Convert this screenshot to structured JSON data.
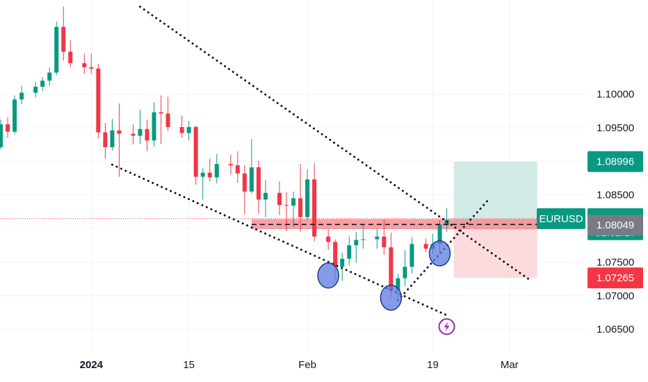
{
  "chart_data": {
    "type": "candlestick",
    "symbol": "EURUSD",
    "y_axis": {
      "range": [
        1.0615,
        1.114
      ],
      "ticks": [
        {
          "value": 1.1,
          "label": "1.10000"
        },
        {
          "value": 1.095,
          "label": "1.09500"
        },
        {
          "value": 1.085,
          "label": "1.08500"
        },
        {
          "value": 1.075,
          "label": "1.07500"
        },
        {
          "value": 1.07,
          "label": "1.07000"
        },
        {
          "value": 1.065,
          "label": "1.06500"
        }
      ]
    },
    "x_axis": {
      "range": [
        "2023-12-18",
        "2024-03-11"
      ],
      "ticks": [
        {
          "date": "2024-01-01",
          "label": "2024",
          "bold": true
        },
        {
          "date": "2024-01-15",
          "label": "15",
          "bold": false
        },
        {
          "date": "2024-02-01",
          "label": "Feb",
          "bold": false
        },
        {
          "date": "2024-02-19",
          "label": "19",
          "bold": false
        },
        {
          "date": "2024-03-01",
          "label": "Mar",
          "bold": false
        }
      ]
    },
    "grid": true,
    "colors": {
      "up": "#089981",
      "down": "#f23645",
      "axis_text": "#131722",
      "grid": "#f0f3fa",
      "target_zone": "#cbe8e2",
      "stop_zone": "#fbd5d8",
      "support_zone": "#f5888f",
      "pattern_circle": "#5b7be0"
    },
    "price_labels": [
      {
        "value": 1.08996,
        "text": "1.08996",
        "color": "#089981"
      },
      {
        "value": 1.08147,
        "text": "1.08147",
        "countdown": "01:01:17",
        "color": "#089981"
      },
      {
        "value": 1.08049,
        "text": "1.08049",
        "color": "#787b86"
      },
      {
        "value": 1.07265,
        "text": "1.07265",
        "color": "#f23645"
      }
    ],
    "current_price": 1.08147,
    "entry_price": 1.08049,
    "target_price": 1.08996,
    "stop_price": 1.07265,
    "position_window": [
      "2024-02-22",
      "2024-03-05"
    ],
    "support_zone": {
      "from": [
        "2024-01-24",
        1.0799
      ],
      "to": [
        "2024-03-08",
        1.0814
      ]
    },
    "dashed_level": {
      "from": [
        "2024-01-24",
        1.0806
      ],
      "to": [
        "2024-03-08",
        1.0806
      ]
    },
    "trendlines": [
      {
        "from": [
          "2024-01-08",
          1.113
        ],
        "to": [
          "2024-03-04",
          1.0723
        ]
      },
      {
        "from": [
          "2024-01-04",
          1.0895
        ],
        "to": [
          "2024-02-21",
          1.0671
        ]
      },
      {
        "from": [
          "2024-02-14",
          1.0693
        ],
        "to": [
          "2024-02-27",
          1.0843
        ]
      }
    ],
    "highlighted_lows": [
      {
        "date": "2024-02-04",
        "price": 1.073
      },
      {
        "date": "2024-02-13",
        "price": 1.0697
      },
      {
        "date": "2024-02-20",
        "price": 1.0763
      }
    ],
    "event_marker": {
      "date": "2024-02-21",
      "price": 1.0654
    },
    "candles": [
      [
        "2023-12-18",
        1.0904,
        1.0928,
        1.0896,
        1.0921
      ],
      [
        "2023-12-19",
        1.0921,
        1.0962,
        1.0918,
        1.0955
      ],
      [
        "2023-12-20",
        1.0955,
        1.0965,
        1.0935,
        1.0944
      ],
      [
        "2023-12-21",
        1.0944,
        1.0998,
        1.094,
        1.0992
      ],
      [
        "2023-12-22",
        1.0992,
        1.1012,
        1.0985,
        1.1002
      ],
      [
        "2023-12-24",
        1.1002,
        1.1018,
        1.0995,
        1.1011
      ],
      [
        "2023-12-25",
        1.1011,
        1.1025,
        1.1004,
        1.102
      ],
      [
        "2023-12-26",
        1.102,
        1.104,
        1.1012,
        1.1032
      ],
      [
        "2023-12-27",
        1.1032,
        1.1108,
        1.1028,
        1.11
      ],
      [
        "2023-12-28",
        1.11,
        1.113,
        1.105,
        1.1063
      ],
      [
        "2023-12-29",
        1.1063,
        1.108,
        1.104,
        1.1046
      ],
      [
        "2023-12-31",
        1.1046,
        1.106,
        1.103,
        1.104
      ],
      [
        "2024-01-01",
        1.104,
        1.106,
        1.103,
        1.1038
      ],
      [
        "2024-01-02",
        1.1038,
        1.1045,
        1.0934,
        1.0943
      ],
      [
        "2024-01-03",
        1.0943,
        1.0957,
        1.0904,
        1.0921
      ],
      [
        "2024-01-04",
        1.0921,
        1.0963,
        1.0916,
        1.0946
      ],
      [
        "2024-01-05",
        1.0946,
        1.0986,
        1.0877,
        1.0941
      ],
      [
        "2024-01-07",
        1.0941,
        1.0955,
        1.0925,
        1.0938
      ],
      [
        "2024-01-08",
        1.0938,
        1.0977,
        1.0926,
        1.0948
      ],
      [
        "2024-01-09",
        1.0948,
        1.0962,
        1.0915,
        1.0931
      ],
      [
        "2024-01-10",
        1.0931,
        1.0988,
        1.0922,
        1.0973
      ],
      [
        "2024-01-11",
        1.0973,
        1.0998,
        1.0926,
        1.0971
      ],
      [
        "2024-01-12",
        1.0971,
        1.0996,
        1.0945,
        1.0951
      ],
      [
        "2024-01-14",
        1.0951,
        1.0968,
        1.0935,
        1.0942
      ],
      [
        "2024-01-15",
        1.0942,
        1.096,
        1.0931,
        1.0951
      ],
      [
        "2024-01-16",
        1.0951,
        1.0953,
        1.0865,
        1.0877
      ],
      [
        "2024-01-17",
        1.0877,
        1.089,
        1.0843,
        1.0883
      ],
      [
        "2024-01-18",
        1.0883,
        1.0904,
        1.087,
        1.0876
      ],
      [
        "2024-01-19",
        1.0876,
        1.0911,
        1.0867,
        1.0896
      ],
      [
        "2024-01-21",
        1.0896,
        1.091,
        1.088,
        1.0894
      ],
      [
        "2024-01-22",
        1.0894,
        1.0915,
        1.0868,
        1.0882
      ],
      [
        "2024-01-23",
        1.0882,
        1.0894,
        1.0821,
        1.0855
      ],
      [
        "2024-01-24",
        1.0855,
        1.0933,
        1.0852,
        1.0891
      ],
      [
        "2024-01-25",
        1.0891,
        1.0901,
        1.0822,
        1.0843
      ],
      [
        "2024-01-26",
        1.0843,
        1.0872,
        1.0817,
        1.0853
      ],
      [
        "2024-01-28",
        1.0853,
        1.087,
        1.082,
        1.0835
      ],
      [
        "2024-01-29",
        1.0835,
        1.0854,
        1.0796,
        1.0834
      ],
      [
        "2024-01-30",
        1.0834,
        1.0855,
        1.0802,
        1.0845
      ],
      [
        "2024-01-31",
        1.0845,
        1.0896,
        1.0795,
        1.0817
      ],
      [
        "2024-02-01",
        1.0817,
        1.0888,
        1.0812,
        1.0873
      ],
      [
        "2024-02-02",
        1.0873,
        1.0897,
        1.0781,
        1.0788
      ],
      [
        "2024-02-04",
        1.0788,
        1.0799,
        1.0768,
        1.078
      ],
      [
        "2024-02-05",
        1.078,
        1.0784,
        1.0723,
        1.0743
      ],
      [
        "2024-02-06",
        1.0743,
        1.0764,
        1.0722,
        1.0755
      ],
      [
        "2024-02-07",
        1.0755,
        1.0788,
        1.0745,
        1.0775
      ],
      [
        "2024-02-08",
        1.0775,
        1.0795,
        1.0749,
        1.0783
      ],
      [
        "2024-02-09",
        1.0783,
        1.0806,
        1.077,
        1.0784
      ],
      [
        "2024-02-11",
        1.0784,
        1.08,
        1.077,
        1.0788
      ],
      [
        "2024-02-12",
        1.0788,
        1.0813,
        1.0761,
        1.0772
      ],
      [
        "2024-02-13",
        1.0772,
        1.0794,
        1.0697,
        1.0708
      ],
      [
        "2024-02-14",
        1.0708,
        1.0733,
        1.0695,
        1.0726
      ],
      [
        "2024-02-15",
        1.0726,
        1.0768,
        1.0714,
        1.0743
      ],
      [
        "2024-02-16",
        1.0743,
        1.0787,
        1.0733,
        1.0777
      ],
      [
        "2024-02-18",
        1.0777,
        1.0785,
        1.0765,
        1.077
      ],
      [
        "2024-02-19",
        1.077,
        1.0792,
        1.0762,
        1.0777
      ],
      [
        "2024-02-20",
        1.0777,
        1.0812,
        1.0762,
        1.0806
      ],
      [
        "2024-02-21",
        1.0806,
        1.083,
        1.0795,
        1.0813
      ]
    ]
  }
}
